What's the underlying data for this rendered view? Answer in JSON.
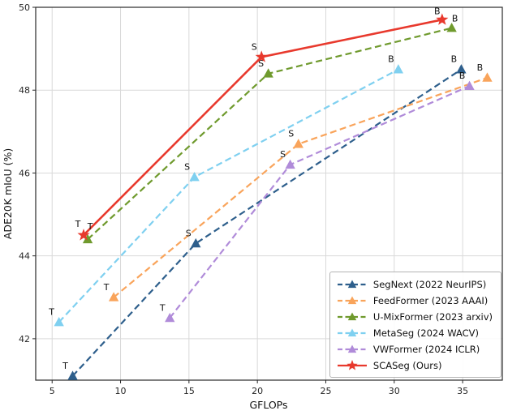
{
  "chart_data": {
    "type": "line",
    "title": "",
    "xlabel": "GFLOPs",
    "ylabel": "ADE20K mIoU (%)",
    "xlim": [
      3.8,
      37.9
    ],
    "ylim": [
      41,
      50
    ],
    "xticks": [
      5,
      10,
      15,
      20,
      25,
      30,
      35
    ],
    "yticks": [
      42,
      44,
      46,
      48,
      50
    ],
    "grid": true,
    "legend_position": "lower right",
    "grid_color": "#d9d9d9",
    "series": [
      {
        "name": "SegNext (2022 NeurIPS)",
        "color": "#2e5f8c",
        "marker": "triangle",
        "line": "dashed",
        "points": [
          {
            "x": 6.5,
            "y": 41.1,
            "label": "T"
          },
          {
            "x": 15.5,
            "y": 44.3,
            "label": "S"
          },
          {
            "x": 34.9,
            "y": 48.5,
            "label": "B"
          }
        ]
      },
      {
        "name": "FeedFormer (2023 AAAI)",
        "color": "#f9a45b",
        "marker": "triangle",
        "line": "dashed",
        "points": [
          {
            "x": 9.5,
            "y": 43.0,
            "label": "T"
          },
          {
            "x": 23.0,
            "y": 46.7,
            "label": "S"
          },
          {
            "x": 36.8,
            "y": 48.3,
            "label": "B"
          }
        ]
      },
      {
        "name": "U-MixFormer (2023 arxiv)",
        "color": "#6f9a2d",
        "marker": "triangle",
        "line": "dashed",
        "points": [
          {
            "x": 7.6,
            "y": 44.4,
            "label": "T",
            "dx": 3,
            "dy": -12
          },
          {
            "x": 20.8,
            "y": 48.4,
            "label": "S"
          },
          {
            "x": 34.2,
            "y": 49.5,
            "label": "B",
            "dx": 4,
            "dy": -8
          }
        ]
      },
      {
        "name": "MetaSeg (2024 WACV)",
        "color": "#7fd0f0",
        "marker": "triangle",
        "line": "dashed",
        "points": [
          {
            "x": 5.5,
            "y": 42.4,
            "label": "T"
          },
          {
            "x": 15.4,
            "y": 45.9,
            "label": "S"
          },
          {
            "x": 30.3,
            "y": 48.5,
            "label": "B"
          }
        ]
      },
      {
        "name": "VWFormer (2024 ICLR)",
        "color": "#b08bd9",
        "marker": "triangle",
        "line": "dashed",
        "points": [
          {
            "x": 13.6,
            "y": 42.5,
            "label": "T"
          },
          {
            "x": 22.4,
            "y": 46.2,
            "label": "S"
          },
          {
            "x": 35.5,
            "y": 48.1,
            "label": "B"
          }
        ]
      },
      {
        "name": "SCASeg (Ours)",
        "color": "#e8392d",
        "marker": "star",
        "line": "solid",
        "points": [
          {
            "x": 7.3,
            "y": 44.5,
            "label": "T",
            "dx": -7,
            "dy": -10
          },
          {
            "x": 20.3,
            "y": 48.8,
            "label": "S"
          },
          {
            "x": 33.5,
            "y": 49.7,
            "label": "B",
            "dx": -6,
            "dy": -7
          }
        ]
      }
    ]
  }
}
